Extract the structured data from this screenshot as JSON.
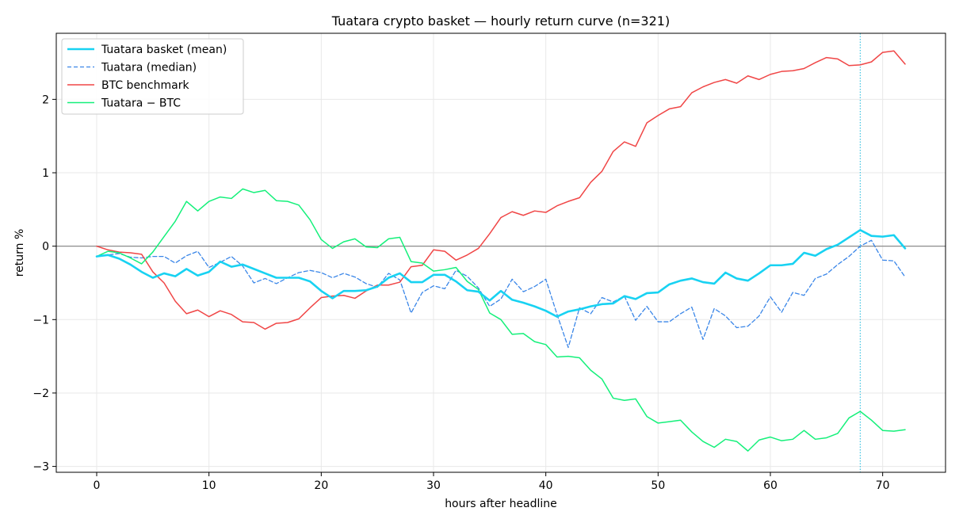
{
  "chart_data": {
    "type": "line",
    "title": "Tuatara crypto basket — hourly return curve (n=321)",
    "xlabel": "hours after headline",
    "ylabel": "return %",
    "xlim": [
      -3.6,
      75.6
    ],
    "ylim": [
      -3.08,
      2.9
    ],
    "xticks": [
      0,
      10,
      20,
      30,
      40,
      50,
      60,
      70
    ],
    "xtick_labels": [
      "0",
      "10",
      "20",
      "30",
      "40",
      "50",
      "60",
      "70"
    ],
    "yticks": [
      -3,
      -2,
      -1,
      0,
      1,
      2
    ],
    "ytick_labels": [
      "−3",
      "−2",
      "−1",
      "0",
      "1",
      "2"
    ],
    "grid": true,
    "legend_position": "upper-left",
    "zero_line": 0,
    "vline_x": 68,
    "x": [
      0,
      1,
      2,
      3,
      4,
      5,
      6,
      7,
      8,
      9,
      10,
      11,
      12,
      13,
      14,
      15,
      16,
      17,
      18,
      19,
      20,
      21,
      22,
      23,
      24,
      25,
      26,
      27,
      28,
      29,
      30,
      31,
      32,
      33,
      34,
      35,
      36,
      37,
      38,
      39,
      40,
      41,
      42,
      43,
      44,
      45,
      46,
      47,
      48,
      49,
      50,
      51,
      52,
      53,
      54,
      55,
      56,
      57,
      58,
      59,
      60,
      61,
      62,
      63,
      64,
      65,
      66,
      67,
      68,
      69,
      70,
      71,
      72
    ],
    "series": [
      {
        "name": "Tuatara basket (mean)",
        "color": "#18d2f2",
        "style": "solid-thick",
        "values": [
          -0.14,
          -0.12,
          -0.17,
          -0.25,
          -0.35,
          -0.43,
          -0.37,
          -0.41,
          -0.31,
          -0.4,
          -0.35,
          -0.21,
          -0.28,
          -0.25,
          -0.31,
          -0.37,
          -0.43,
          -0.43,
          -0.43,
          -0.48,
          -0.61,
          -0.71,
          -0.61,
          -0.61,
          -0.6,
          -0.55,
          -0.43,
          -0.37,
          -0.49,
          -0.49,
          -0.39,
          -0.39,
          -0.48,
          -0.6,
          -0.62,
          -0.74,
          -0.61,
          -0.73,
          -0.77,
          -0.82,
          -0.88,
          -0.96,
          -0.89,
          -0.86,
          -0.82,
          -0.79,
          -0.78,
          -0.68,
          -0.72,
          -0.64,
          -0.63,
          -0.52,
          -0.47,
          -0.44,
          -0.49,
          -0.51,
          -0.36,
          -0.44,
          -0.47,
          -0.37,
          -0.26,
          -0.26,
          -0.24,
          -0.09,
          -0.13,
          -0.04,
          0.02,
          0.12,
          0.22,
          0.14,
          0.13,
          0.15,
          -0.03
        ]
      },
      {
        "name": "Tuatara (median)",
        "color": "#3a86e8",
        "style": "dashed",
        "values": [
          -0.14,
          -0.12,
          -0.1,
          -0.15,
          -0.16,
          -0.14,
          -0.14,
          -0.23,
          -0.13,
          -0.07,
          -0.29,
          -0.22,
          -0.14,
          -0.27,
          -0.5,
          -0.44,
          -0.51,
          -0.43,
          -0.36,
          -0.33,
          -0.36,
          -0.43,
          -0.37,
          -0.42,
          -0.51,
          -0.56,
          -0.37,
          -0.46,
          -0.91,
          -0.63,
          -0.54,
          -0.58,
          -0.33,
          -0.41,
          -0.57,
          -0.82,
          -0.72,
          -0.45,
          -0.62,
          -0.55,
          -0.45,
          -0.93,
          -1.38,
          -0.84,
          -0.92,
          -0.7,
          -0.76,
          -0.68,
          -1.01,
          -0.82,
          -1.03,
          -1.03,
          -0.92,
          -0.83,
          -1.27,
          -0.85,
          -0.95,
          -1.11,
          -1.09,
          -0.95,
          -0.69,
          -0.9,
          -0.63,
          -0.67,
          -0.44,
          -0.38,
          -0.25,
          -0.14,
          0.0,
          0.08,
          -0.19,
          -0.2,
          -0.42
        ]
      },
      {
        "name": "BTC benchmark",
        "color": "#f04646",
        "style": "solid",
        "values": [
          0.0,
          -0.05,
          -0.08,
          -0.09,
          -0.11,
          -0.35,
          -0.5,
          -0.75,
          -0.92,
          -0.87,
          -0.96,
          -0.88,
          -0.93,
          -1.03,
          -1.04,
          -1.13,
          -1.05,
          -1.04,
          -0.99,
          -0.84,
          -0.7,
          -0.68,
          -0.67,
          -0.71,
          -0.61,
          -0.53,
          -0.53,
          -0.49,
          -0.28,
          -0.26,
          -0.05,
          -0.07,
          -0.19,
          -0.12,
          -0.03,
          0.17,
          0.39,
          0.47,
          0.42,
          0.48,
          0.46,
          0.55,
          0.61,
          0.66,
          0.87,
          1.02,
          1.29,
          1.42,
          1.36,
          1.68,
          1.78,
          1.87,
          1.9,
          2.09,
          2.17,
          2.23,
          2.27,
          2.22,
          2.32,
          2.27,
          2.34,
          2.38,
          2.39,
          2.42,
          2.5,
          2.57,
          2.55,
          2.46,
          2.47,
          2.51,
          2.64,
          2.66,
          2.48
        ]
      },
      {
        "name": "Tuatara − BTC",
        "color": "#14f07a",
        "style": "solid",
        "values": [
          -0.14,
          -0.07,
          -0.09,
          -0.16,
          -0.24,
          -0.08,
          0.13,
          0.34,
          0.61,
          0.48,
          0.61,
          0.67,
          0.65,
          0.78,
          0.73,
          0.76,
          0.62,
          0.61,
          0.56,
          0.36,
          0.09,
          -0.03,
          0.06,
          0.1,
          -0.01,
          -0.02,
          0.1,
          0.12,
          -0.21,
          -0.23,
          -0.34,
          -0.32,
          -0.29,
          -0.48,
          -0.59,
          -0.91,
          -1.0,
          -1.2,
          -1.19,
          -1.3,
          -1.34,
          -1.51,
          -1.5,
          -1.52,
          -1.69,
          -1.81,
          -2.07,
          -2.1,
          -2.08,
          -2.32,
          -2.41,
          -2.39,
          -2.37,
          -2.53,
          -2.66,
          -2.74,
          -2.63,
          -2.66,
          -2.79,
          -2.64,
          -2.6,
          -2.65,
          -2.63,
          -2.51,
          -2.63,
          -2.61,
          -2.55,
          -2.34,
          -2.25,
          -2.37,
          -2.51,
          -2.52,
          -2.5
        ]
      }
    ]
  }
}
